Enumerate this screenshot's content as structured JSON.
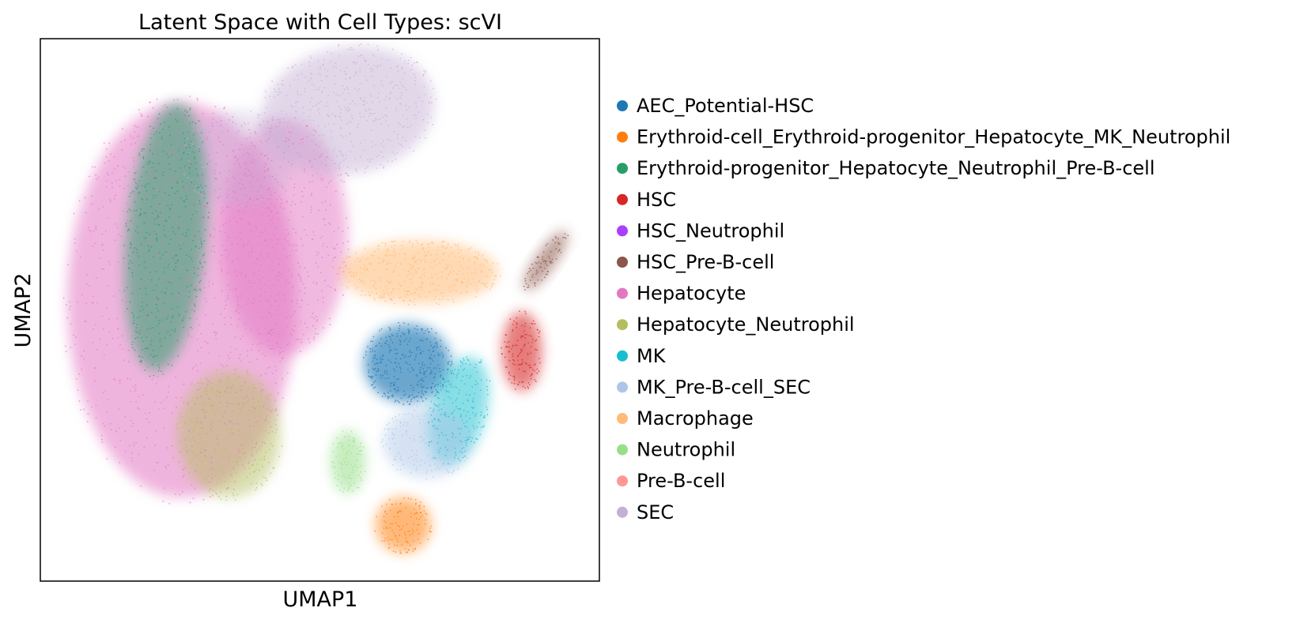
{
  "chart_data": {
    "type": "scatter",
    "title": "Latent Space with Cell Types: scVI",
    "xlabel": "UMAP1",
    "ylabel": "UMAP2",
    "xticks": "none",
    "yticks": "none",
    "grid": false,
    "legend_position": "right, outside plot",
    "categories": [
      {
        "name": "AEC_Potential-HSC",
        "color": "#1f77b4"
      },
      {
        "name": "Erythroid-cell_Erythroid-progenitor_Hepatocyte_MK_Neutrophil",
        "color": "#ff7f0e"
      },
      {
        "name": "Erythroid-progenitor_Hepatocyte_Neutrophil_Pre-B-cell",
        "color": "#279e68"
      },
      {
        "name": "HSC",
        "color": "#d62728"
      },
      {
        "name": "HSC_Neutrophil",
        "color": "#aa40fc"
      },
      {
        "name": "HSC_Pre-B-cell",
        "color": "#8c564b"
      },
      {
        "name": "Hepatocyte",
        "color": "#e377c2"
      },
      {
        "name": "Hepatocyte_Neutrophil",
        "color": "#b5bd61"
      },
      {
        "name": "MK",
        "color": "#17becf"
      },
      {
        "name": "MK_Pre-B-cell_SEC",
        "color": "#aec7e8"
      },
      {
        "name": "Macrophage",
        "color": "#ffbb78"
      },
      {
        "name": "Neutrophil",
        "color": "#98df8a"
      },
      {
        "name": "Pre-B-cell",
        "color": "#ff9896"
      },
      {
        "name": "SEC",
        "color": "#c5b0d5"
      }
    ]
  }
}
